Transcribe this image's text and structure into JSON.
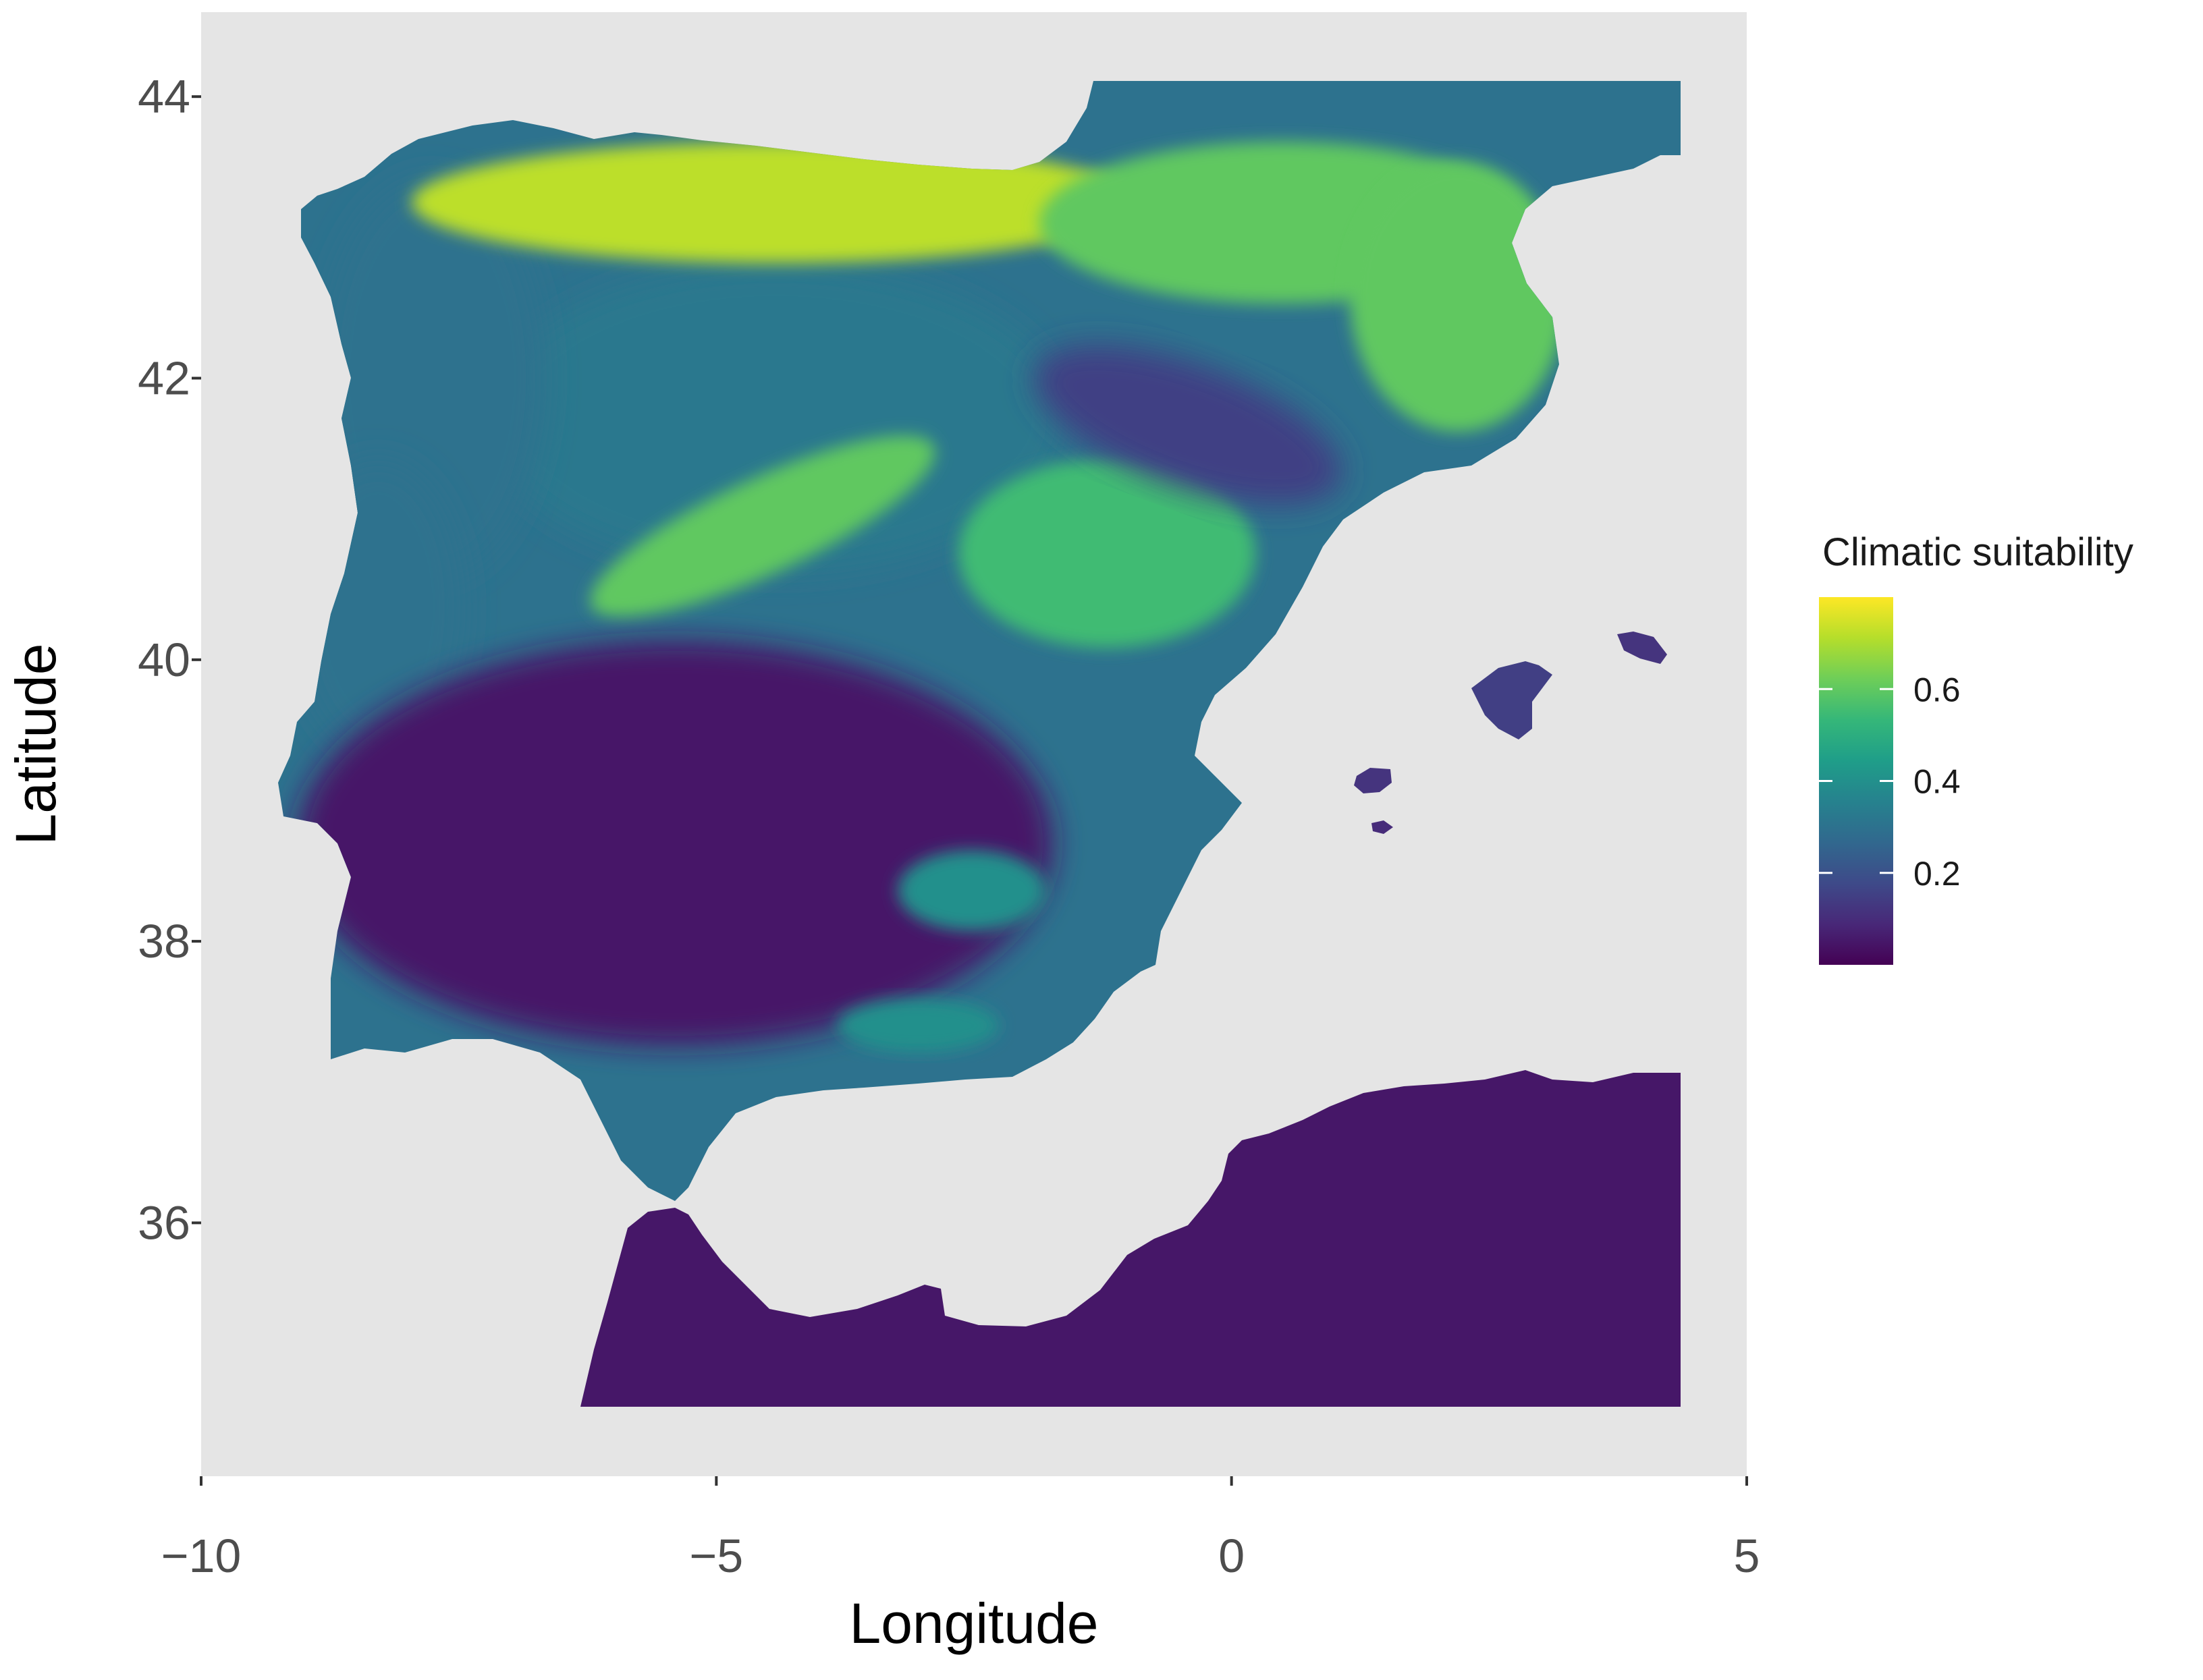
{
  "map": {
    "panel_color": "#e5e5e5",
    "x_axis": {
      "title": "Longitude",
      "min": -10,
      "max": 5,
      "ticks": [
        -10,
        -5,
        0,
        5
      ],
      "tick_labels": [
        "−10",
        "−5",
        "0",
        "5"
      ]
    },
    "y_axis": {
      "title": "Latitude",
      "min": 34.2,
      "max": 44.6,
      "ticks": [
        36,
        38,
        40,
        42,
        44
      ],
      "tick_labels": [
        "36",
        "38",
        "40",
        "42",
        "44"
      ]
    },
    "grid": false
  },
  "legend": {
    "title": "Climatic suitability",
    "placement": "right",
    "scale": "viridis",
    "range": [
      0.0,
      0.8
    ],
    "ticks": [
      0.2,
      0.4,
      0.6
    ],
    "tick_labels": [
      "0.2",
      "0.4",
      "0.6"
    ],
    "colors": [
      "#440154",
      "#482878",
      "#3e4a89",
      "#31688e",
      "#26828e",
      "#1f9e89",
      "#35b779",
      "#6ece58",
      "#b5de2b",
      "#fde725"
    ]
  },
  "regions": [
    {
      "name": "iberian-peninsula",
      "value": 0.3
    },
    {
      "name": "north-africa",
      "value": 0.05
    },
    {
      "name": "mallorca",
      "value": 0.15
    },
    {
      "name": "menorca",
      "value": 0.12
    },
    {
      "name": "ibiza",
      "value": 0.12
    },
    {
      "name": "formentera",
      "value": 0.1
    },
    {
      "name": "cantabrian-mountains",
      "value": 0.72
    },
    {
      "name": "pyrenees",
      "value": 0.6
    },
    {
      "name": "catalonia",
      "value": 0.6
    },
    {
      "name": "iberian-system",
      "value": 0.55
    },
    {
      "name": "central-system",
      "value": 0.6
    },
    {
      "name": "northern-plateau",
      "value": 0.32
    },
    {
      "name": "ebro-valley",
      "value": 0.15
    },
    {
      "name": "galicia",
      "value": 0.3
    },
    {
      "name": "portugal-west",
      "value": 0.3
    },
    {
      "name": "southern-iberia",
      "value": 0.05
    },
    {
      "name": "south-mountains",
      "value": 0.4
    },
    {
      "name": "sierra-nevada",
      "value": 0.4
    }
  ]
}
